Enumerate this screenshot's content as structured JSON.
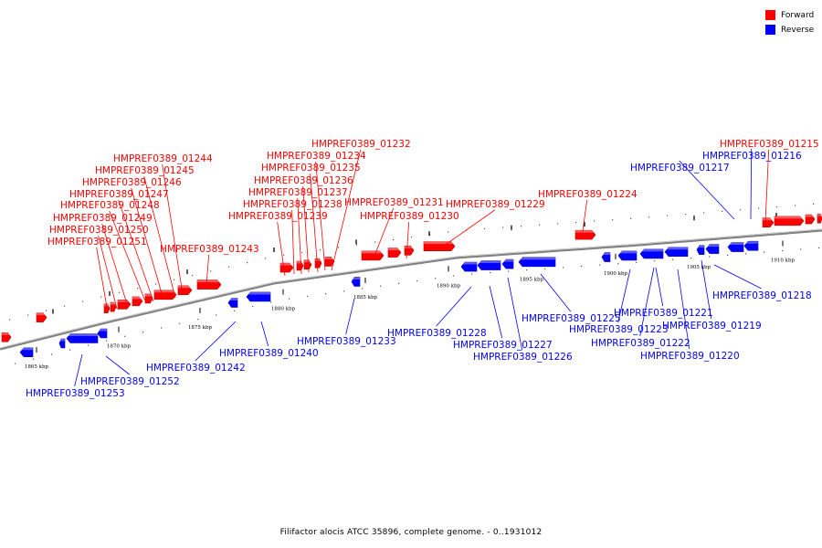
{
  "legend": {
    "forward_label": "Forward",
    "reverse_label": "Reverse",
    "forward_color": "#ff0000",
    "reverse_color": "#0000ff"
  },
  "caption": "Filifactor alocis ATCC 35896, complete genome. - 0..1931012",
  "colors": {
    "forward": "#ff0000",
    "reverse": "#0000ff",
    "backbone": "#808080",
    "ticks": "#000000"
  },
  "ticks": [
    "1865 kbp",
    "1870 kbp",
    "1875 kbp",
    "1880 kbp",
    "1885 kbp",
    "1890 kbp",
    "1895 kbp",
    "1900 kbp",
    "1905 kbp",
    "1910 kbp"
  ],
  "forward_labels": [
    "HMPREF0389_01244",
    "HMPREF0389_01245",
    "HMPREF0389_01246",
    "HMPREF0389_01247",
    "HMPREF0389_01248",
    "HMPREF0389_01249",
    "HMPREF0389_01250",
    "HMPREF0389_01251",
    "HMPREF0389_01243",
    "HMPREF0389_01232",
    "HMPREF0389_01234",
    "HMPREF0389_01235",
    "HMPREF0389_01236",
    "HMPREF0389_01237",
    "HMPREF0389_01238",
    "HMPREF0389_01239",
    "HMPREF0389_01231",
    "HMPREF0389_01230",
    "HMPREF0389_01229",
    "HMPREF0389_01224",
    "HMPREF0389_01215"
  ],
  "reverse_labels": [
    "HMPREF0389_01216",
    "HMPREF0389_01217",
    "HMPREF0389_01218",
    "HMPREF0389_01225",
    "HMPREF0389_01221",
    "HMPREF0389_01223",
    "HMPREF0389_01219",
    "HMPREF0389_01228",
    "HMPREF0389_01233",
    "HMPREF0389_01227",
    "HMPREF0389_01222",
    "HMPREF0389_01226",
    "HMPREF0389_01220",
    "HMPREF0389_01240",
    "HMPREF0389_01242",
    "HMPREF0389_01252",
    "HMPREF0389_01253"
  ]
}
